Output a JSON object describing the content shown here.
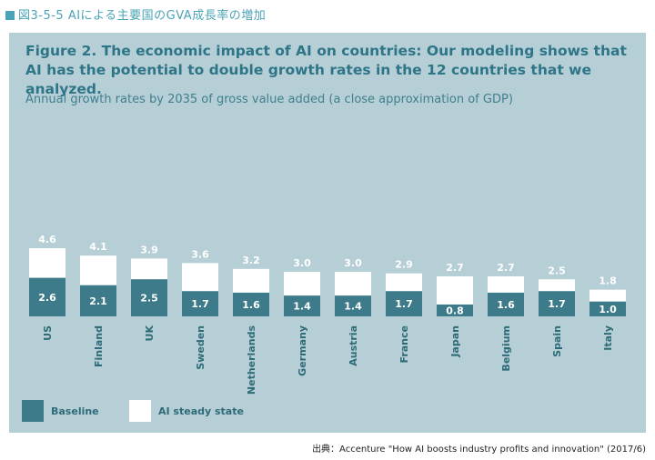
{
  "doc": {
    "title": "図3-5-5 AIによる主要国のGVA成長率の増加"
  },
  "figure": {
    "title": "Figure 2. The economic impact of AI on countries: Our modeling shows that AI has the potential to double growth rates in the 12 countries that we analyzed.",
    "subtitle": "Annual growth rates by 2035 of gross value added (a close approximation of GDP)"
  },
  "source": "出典：Accenture \"How AI boosts industry profits and innovation\" (2017/6)",
  "colors": {
    "panel": "#b6cfd6",
    "baseline": "#3d7b8a",
    "steady": "#ffffff",
    "title": "#2e7587"
  },
  "chart_data": {
    "type": "bar",
    "stacked": true,
    "categories": [
      "US",
      "Finland",
      "UK",
      "Sweden",
      "Netherlands",
      "Germany",
      "Austria",
      "France",
      "Japan",
      "Belgium",
      "Spain",
      "Italy"
    ],
    "series": [
      {
        "name": "Baseline",
        "values": [
          2.6,
          2.1,
          2.5,
          1.7,
          1.6,
          1.4,
          1.4,
          1.7,
          0.8,
          1.6,
          1.7,
          1.0
        ]
      },
      {
        "name": "AI steady state",
        "totals": [
          4.6,
          4.1,
          3.9,
          3.6,
          3.2,
          3.0,
          3.0,
          2.9,
          2.7,
          2.7,
          2.5,
          1.8
        ]
      }
    ],
    "legend": [
      "Baseline",
      "AI steady state"
    ],
    "legend_position": "bottom-left",
    "grid": false
  }
}
